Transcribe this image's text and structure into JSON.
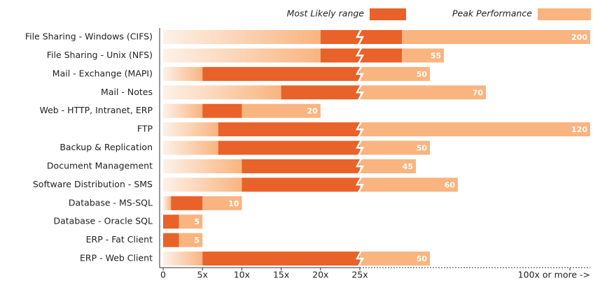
{
  "chart_data": {
    "type": "range-bar",
    "legend": [
      {
        "name": "Most Likely range",
        "color": "#e8622a"
      },
      {
        "name": "Peak Performance",
        "color": "#f9b47f"
      }
    ],
    "fade_color": "#fdf1e8",
    "rows": [
      {
        "label": "File Sharing - Windows (CIFS)",
        "low": 20,
        "high": 40,
        "peak": 200
      },
      {
        "label": "File Sharing - Unix (NFS)",
        "low": 20,
        "high": 40,
        "peak": 55
      },
      {
        "label": "Mail - Exchange (MAPI)",
        "low": 5,
        "high": 25,
        "peak": 50
      },
      {
        "label": "Mail - Notes",
        "low": 15,
        "high": 25,
        "peak": 70
      },
      {
        "label": "Web - HTTP, Intranet, ERP",
        "low": 5,
        "high": 10,
        "peak": 20
      },
      {
        "label": "FTP",
        "low": 7,
        "high": 25,
        "peak": 120
      },
      {
        "label": "Backup & Replication",
        "low": 7,
        "high": 25,
        "peak": 50
      },
      {
        "label": "Document Management",
        "low": 10,
        "high": 25,
        "peak": 45
      },
      {
        "label": "Software Distribution - SMS",
        "low": 10,
        "high": 25,
        "peak": 60
      },
      {
        "label": "Database - MS-SQL",
        "low": 1,
        "high": 5,
        "peak": 10
      },
      {
        "label": "Database - Oracle SQL",
        "low": 0,
        "high": 2,
        "peak": 5
      },
      {
        "label": "ERP - Fat Client",
        "low": 0,
        "high": 2,
        "peak": 5
      },
      {
        "label": "ERP - Web Client",
        "low": 5,
        "high": 25,
        "peak": 50
      }
    ],
    "xlim": [
      0,
      100
    ],
    "axis_break": 25,
    "xticks": [
      0,
      {
        "value": 5,
        "label": "5x"
      },
      {
        "value": 10,
        "label": "10x"
      },
      {
        "value": 15,
        "label": "15x"
      },
      {
        "value": 20,
        "label": "20x"
      },
      {
        "value": 25,
        "label": "25x"
      },
      {
        "value": 100,
        "label": "100x or more ->"
      }
    ]
  }
}
